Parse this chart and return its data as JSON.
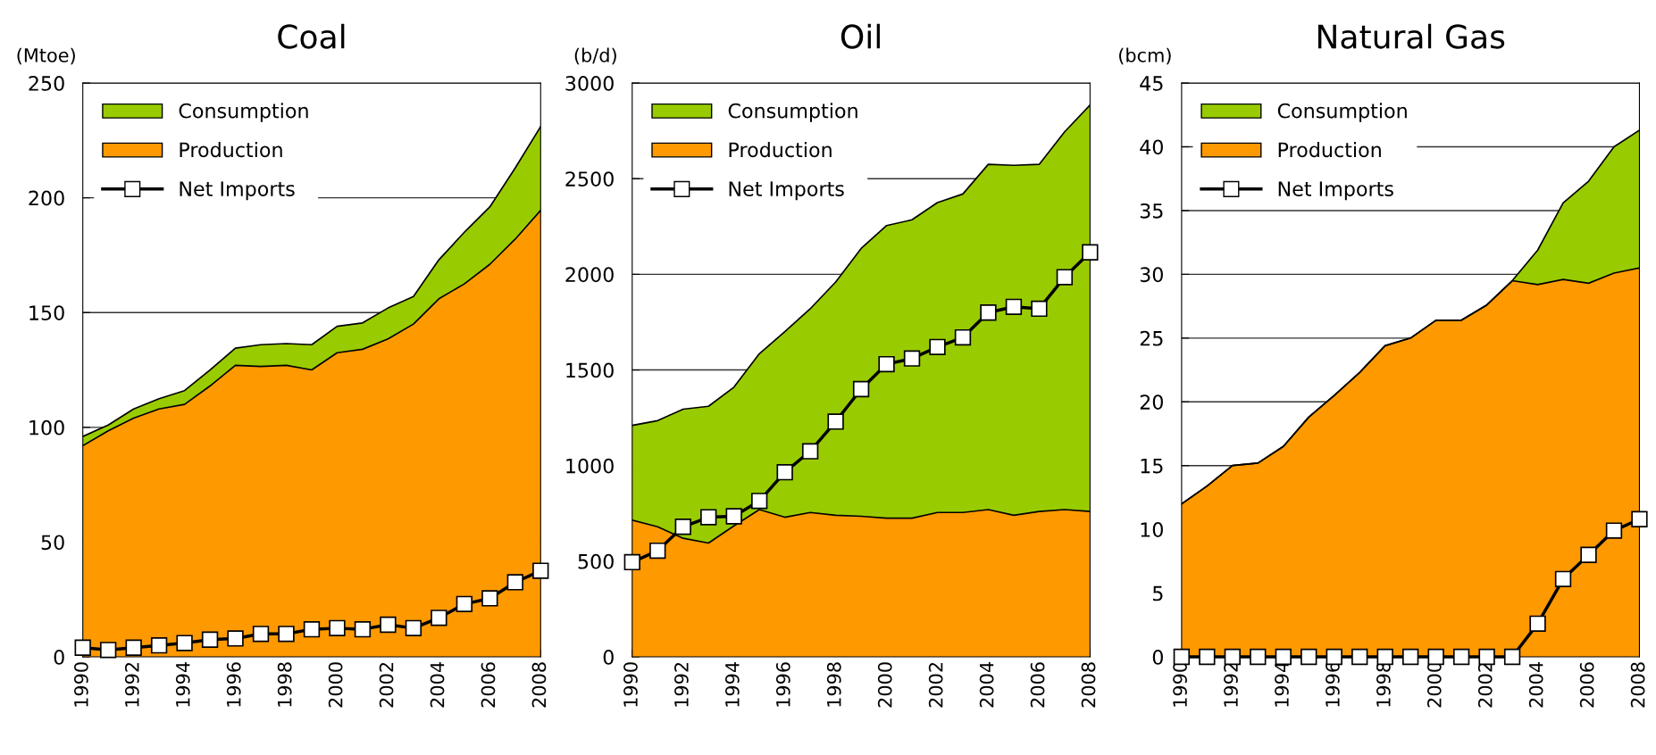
{
  "chart_data": [
    {
      "type": "area",
      "title": "Coal",
      "ylabel": "(Mtoe)",
      "x": [
        1990,
        1991,
        1992,
        1993,
        1994,
        1995,
        1996,
        1997,
        1998,
        1999,
        2000,
        2001,
        2002,
        2003,
        2004,
        2005,
        2006,
        2007,
        2008
      ],
      "xlim": [
        1990,
        2008
      ],
      "xticks": [
        1990,
        {
          "value": 1991,
          "label": null
        },
        1992,
        {
          "value": 1993,
          "label": null
        },
        1994,
        {
          "value": 1995,
          "label": null
        },
        1996,
        {
          "value": 1997,
          "label": null
        },
        1998,
        {
          "value": 1999,
          "label": null
        },
        2000,
        {
          "value": 2001,
          "label": null
        },
        2002,
        {
          "value": 2003,
          "label": null
        },
        2004,
        {
          "value": 2005,
          "label": null
        },
        2006,
        {
          "value": 2007,
          "label": null
        },
        2008
      ],
      "ylim": [
        0,
        250
      ],
      "yticks": [
        0,
        50,
        100,
        150,
        200,
        250
      ],
      "grid": "y",
      "legend": "top left",
      "series": [
        {
          "name": "Consumption",
          "color": "#99cc00",
          "values": [
            96,
            101,
            108,
            112.5,
            116,
            125,
            134.5,
            136,
            136.5,
            136,
            144,
            145.5,
            152,
            157,
            173,
            185,
            196,
            213,
            231
          ]
        },
        {
          "name": "Production",
          "color": "#ff9900",
          "values": [
            92,
            98.5,
            104,
            108,
            110,
            118,
            127,
            126.5,
            127,
            125,
            132.5,
            134,
            138.5,
            145,
            156,
            162.5,
            171,
            182,
            194.5
          ]
        },
        {
          "name": "Net Imports",
          "type": "line",
          "color": "#000000",
          "marker": "square",
          "values": [
            4,
            3,
            4,
            5,
            6,
            7.5,
            8,
            10,
            10,
            12,
            12.5,
            12,
            14,
            12.5,
            17,
            23,
            25.5,
            32.5,
            37.5
          ]
        }
      ]
    },
    {
      "type": "area",
      "title": "Oil",
      "ylabel": "(b/d)",
      "x": [
        1990,
        1991,
        1992,
        1993,
        1994,
        1995,
        1996,
        1997,
        1998,
        1999,
        2000,
        2001,
        2002,
        2003,
        2004,
        2005,
        2006,
        2007,
        2008
      ],
      "xlim": [
        1990,
        2008
      ],
      "xticks": [
        1990,
        {
          "value": 1991,
          "label": null
        },
        1992,
        {
          "value": 1993,
          "label": null
        },
        1994,
        {
          "value": 1995,
          "label": null
        },
        1996,
        {
          "value": 1997,
          "label": null
        },
        1998,
        {
          "value": 1999,
          "label": null
        },
        2000,
        {
          "value": 2001,
          "label": null
        },
        2002,
        {
          "value": 2003,
          "label": null
        },
        2004,
        {
          "value": 2005,
          "label": null
        },
        2006,
        {
          "value": 2007,
          "label": null
        },
        2008
      ],
      "ylim": [
        0,
        3000
      ],
      "yticks": [
        0,
        500,
        1000,
        1500,
        2000,
        2500,
        3000
      ],
      "grid": "y",
      "legend": "top left",
      "series": [
        {
          "name": "Consumption",
          "color": "#99cc00",
          "values": [
            1210,
            1235,
            1295,
            1310,
            1410,
            1585,
            1700,
            1820,
            1960,
            2135,
            2255,
            2285,
            2375,
            2420,
            2575,
            2570,
            2575,
            2745,
            2885
          ]
        },
        {
          "name": "Production",
          "color": "#ff9900",
          "values": [
            715,
            680,
            620,
            595,
            685,
            770,
            730,
            755,
            740,
            735,
            725,
            725,
            755,
            755,
            770,
            740,
            760,
            770,
            760
          ]
        },
        {
          "name": "Net Imports",
          "type": "line",
          "color": "#000000",
          "marker": "square",
          "values": [
            495,
            555,
            680,
            730,
            735,
            815,
            965,
            1075,
            1230,
            1400,
            1530,
            1560,
            1620,
            1670,
            1800,
            1830,
            1820,
            1985,
            2115
          ]
        }
      ]
    },
    {
      "type": "area",
      "title": "Natural Gas",
      "ylabel": "(bcm)",
      "x": [
        1990,
        1991,
        1992,
        1993,
        1994,
        1995,
        1996,
        1997,
        1998,
        1999,
        2000,
        2001,
        2002,
        2003,
        2004,
        2005,
        2006,
        2007,
        2008
      ],
      "xlim": [
        1990,
        2008
      ],
      "xticks": [
        1990,
        {
          "value": 1991,
          "label": null
        },
        1992,
        {
          "value": 1993,
          "label": null
        },
        1994,
        {
          "value": 1995,
          "label": null
        },
        1996,
        {
          "value": 1997,
          "label": null
        },
        1998,
        {
          "value": 1999,
          "label": null
        },
        2000,
        {
          "value": 2001,
          "label": null
        },
        2002,
        {
          "value": 2003,
          "label": null
        },
        2004,
        {
          "value": 2005,
          "label": null
        },
        2006,
        {
          "value": 2007,
          "label": null
        },
        2008
      ],
      "ylim": [
        0,
        45
      ],
      "yticks": [
        0,
        5,
        10,
        15,
        20,
        25,
        30,
        35,
        40,
        45
      ],
      "grid": "y",
      "legend": "top left",
      "series": [
        {
          "name": "Consumption",
          "color": "#99cc00",
          "values": [
            12,
            13.4,
            15,
            15.2,
            16.5,
            18.8,
            20.5,
            22.3,
            24.4,
            25,
            26.4,
            26.4,
            27.6,
            29.5,
            31.9,
            35.6,
            37.3,
            40,
            41.3
          ]
        },
        {
          "name": "Production",
          "color": "#ff9900",
          "values": [
            12,
            13.4,
            15,
            15.2,
            16.5,
            18.8,
            20.5,
            22.3,
            24.4,
            25,
            26.4,
            26.4,
            27.6,
            29.5,
            29.2,
            29.6,
            29.3,
            30.1,
            30.5
          ]
        },
        {
          "name": "Net Imports",
          "type": "line",
          "color": "#000000",
          "marker": "square",
          "values": [
            0,
            0,
            0,
            0,
            0,
            0,
            0,
            0,
            0,
            0,
            0,
            0,
            0,
            0,
            2.6,
            6.1,
            8,
            9.9,
            10.8
          ]
        }
      ]
    }
  ]
}
